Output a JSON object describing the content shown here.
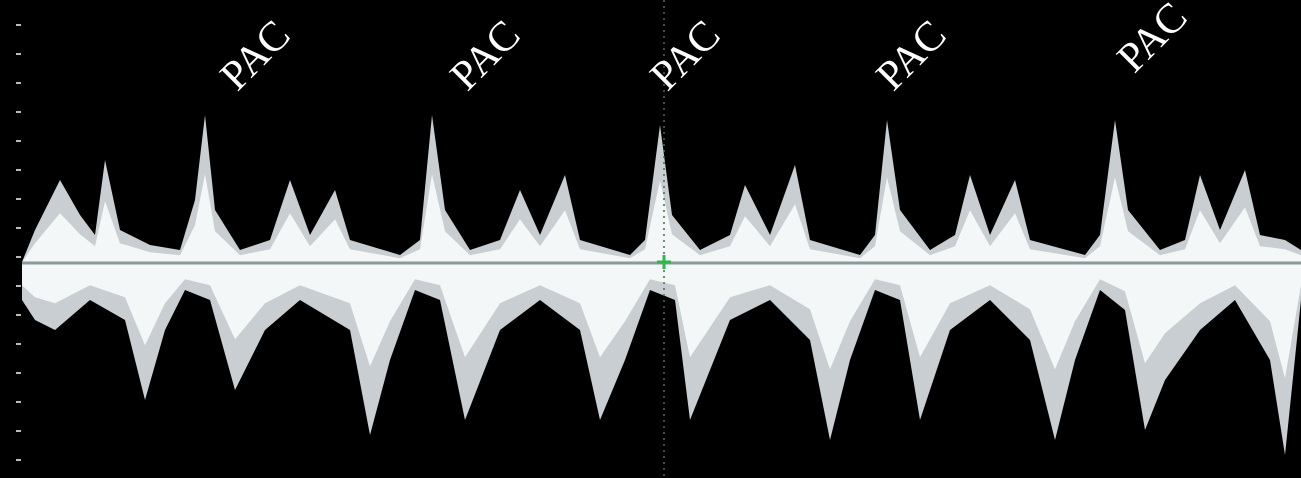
{
  "annotations": [
    {
      "label": "PAC"
    },
    {
      "label": "PAC"
    },
    {
      "label": "PAC"
    },
    {
      "label": "PAC"
    },
    {
      "label": "PAC"
    }
  ]
}
